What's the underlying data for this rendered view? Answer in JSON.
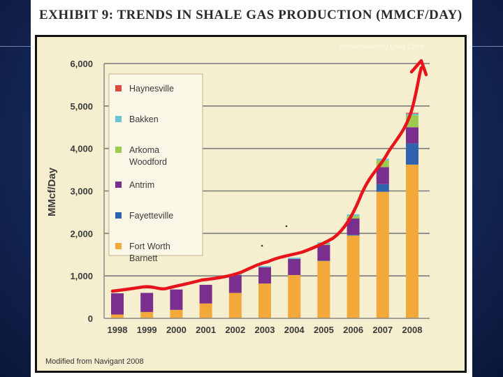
{
  "exhibit_title": "EXHIBIT 9:  TRENDS IN SHALE GAS PRODUCTION (MMCF/DAY)",
  "watermark": "Presentation by Dora Chen",
  "colors": {
    "haynesville": "#d94b3c",
    "bakken": "#6ac5d2",
    "arkoma_woodford": "#9ccb4e",
    "antrim": "#7a2f8e",
    "fayetteville": "#2f63ad",
    "fort_worth_barnett": "#f2a93a",
    "trend_arrow": "#e8141c"
  },
  "chart_data": {
    "type": "bar",
    "stacked": true,
    "title": "",
    "xlabel": "",
    "ylabel": "MMcf/Day",
    "ylim": [
      0,
      6000
    ],
    "ytick_values": [
      0,
      1000,
      2000,
      3000,
      4000,
      5000,
      6000
    ],
    "ytick_labels": [
      "0",
      "1,000",
      "2,000",
      "3,000",
      "4,000",
      "5,000",
      "6,000"
    ],
    "categories": [
      "1998",
      "1999",
      "2000",
      "2001",
      "2002",
      "2003",
      "2004",
      "2005",
      "2006",
      "2007",
      "2008"
    ],
    "series": [
      {
        "name": "Fort Worth Barnett",
        "key": "fort_worth_barnett",
        "values": [
          90,
          150,
          200,
          350,
          600,
          820,
          1020,
          1350,
          1950,
          2980,
          3620
        ]
      },
      {
        "name": "Fayetteville",
        "key": "fayetteville",
        "values": [
          0,
          0,
          0,
          0,
          0,
          0,
          0,
          10,
          20,
          180,
          500
        ]
      },
      {
        "name": "Antrim",
        "key": "antrim",
        "values": [
          500,
          450,
          480,
          440,
          420,
          380,
          380,
          370,
          380,
          400,
          380
        ]
      },
      {
        "name": "Arkoma Woodford",
        "key": "arkoma_woodford",
        "values": [
          0,
          0,
          0,
          0,
          0,
          0,
          0,
          20,
          60,
          160,
          280
        ]
      },
      {
        "name": "Bakken",
        "key": "bakken",
        "values": [
          0,
          0,
          0,
          0,
          20,
          30,
          30,
          40,
          40,
          40,
          40
        ]
      },
      {
        "name": "Haynesville",
        "key": "haynesville",
        "values": [
          0,
          0,
          0,
          0,
          0,
          0,
          0,
          0,
          0,
          0,
          20
        ]
      }
    ],
    "legend": {
      "position": "top-left",
      "entries": [
        {
          "key": "haynesville",
          "lines": [
            "Haynesville"
          ]
        },
        {
          "key": "bakken",
          "lines": [
            "Bakken"
          ]
        },
        {
          "key": "arkoma_woodford",
          "lines": [
            "Arkoma",
            "Woodford"
          ]
        },
        {
          "key": "antrim",
          "lines": [
            "Antrim"
          ]
        },
        {
          "key": "fayetteville",
          "lines": [
            "Fayetteville"
          ]
        },
        {
          "key": "fort_worth_barnett",
          "lines": [
            "Fort Worth",
            "Barnett"
          ]
        }
      ]
    },
    "grid": true,
    "source_note": "Modified from Navigant 2008",
    "annotation": "Hand-drawn red arrow tracing the rising trend"
  }
}
